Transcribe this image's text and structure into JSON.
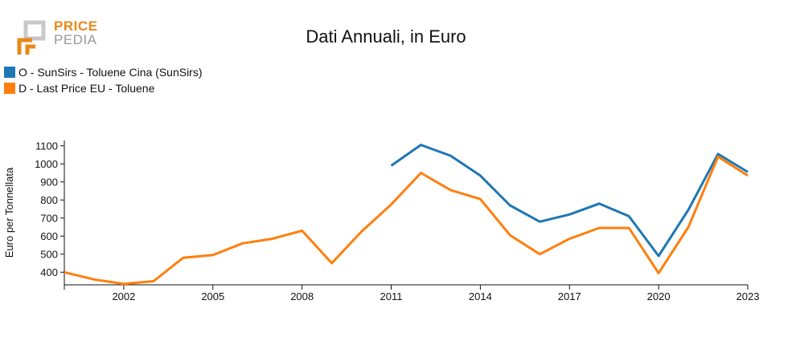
{
  "logo": {
    "line1": "PRICE",
    "line2": "PEDIA"
  },
  "chart_data": {
    "type": "line",
    "title": "Dati Annuali, in Euro",
    "xlabel": "",
    "ylabel": "Euro per Tonnellata",
    "xlim": [
      2000,
      2023
    ],
    "ylim": [
      330,
      1130
    ],
    "x_ticks": [
      2002,
      2005,
      2008,
      2011,
      2014,
      2017,
      2020,
      2023
    ],
    "y_ticks": [
      400,
      500,
      600,
      700,
      800,
      900,
      1000,
      1100
    ],
    "grid": false,
    "legend_position": "top-left",
    "series": [
      {
        "name": "O - SunSirs - Toluene Cina (SunSirs)",
        "color": "#1f77b4",
        "x": [
          2011,
          2012,
          2013,
          2014,
          2015,
          2016,
          2017,
          2018,
          2019,
          2020,
          2021,
          2022,
          2023
        ],
        "values": [
          990,
          1105,
          1045,
          935,
          770,
          680,
          720,
          780,
          710,
          490,
          745,
          1055,
          955
        ]
      },
      {
        "name": "D - Last Price EU - Toluene",
        "color": "#ff7f0e",
        "x": [
          2000,
          2001,
          2002,
          2003,
          2004,
          2005,
          2006,
          2007,
          2008,
          2009,
          2010,
          2011,
          2012,
          2013,
          2014,
          2015,
          2016,
          2017,
          2018,
          2019,
          2020,
          2021,
          2022,
          2023
        ],
        "values": [
          400,
          360,
          335,
          350,
          480,
          495,
          560,
          585,
          630,
          450,
          625,
          775,
          950,
          855,
          805,
          605,
          500,
          585,
          645,
          645,
          395,
          650,
          1040,
          935
        ]
      }
    ]
  }
}
